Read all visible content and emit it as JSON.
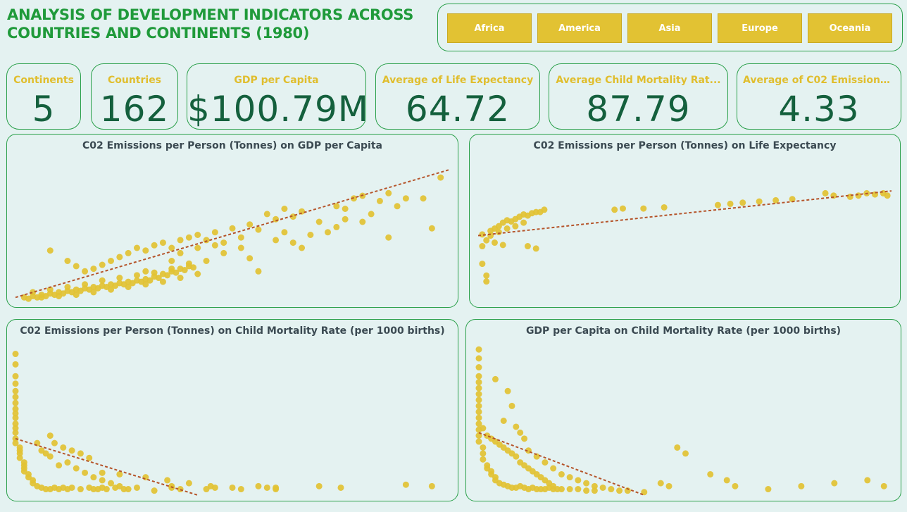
{
  "header": {
    "title_line1": "ANALYSIS OF DEVELOPMENT INDICATORS ACROSS",
    "title_line2": "COUNTRIES AND CONTINENTS (1980)"
  },
  "slicer": {
    "items": [
      "Africa",
      "America",
      "Asia",
      "Europe",
      "Oceania"
    ]
  },
  "kpis": [
    {
      "label": "Continents",
      "value": "5"
    },
    {
      "label": "Countries",
      "value": "162"
    },
    {
      "label": "GDP per Capita",
      "value": "$100.79M"
    },
    {
      "label": "Average of Life Expectancy",
      "value": "64.72"
    },
    {
      "label": "Average Child Mortality Rat...",
      "value": "87.79"
    },
    {
      "label": "Average of C02 Emissions...",
      "value": "4.33"
    }
  ],
  "colors": {
    "title": "#1f9a3a",
    "accent": "#e0be2e",
    "kpi_value": "#14603d",
    "dot": "#e2c233",
    "trend": "#b5542a",
    "border": "#2aa04a",
    "background": "#e4f2f1"
  },
  "chart_data": [
    {
      "type": "scatter",
      "title": "C02 Emissions per Person (Tonnes) on GDP per Capita",
      "xlim": [
        0,
        100
      ],
      "ylim": [
        0,
        100
      ],
      "grid": false,
      "points": [
        [
          2,
          2
        ],
        [
          3,
          1
        ],
        [
          4,
          3
        ],
        [
          5,
          2
        ],
        [
          6,
          4
        ],
        [
          7,
          3
        ],
        [
          8,
          5
        ],
        [
          9,
          4
        ],
        [
          10,
          6
        ],
        [
          11,
          5
        ],
        [
          12,
          7
        ],
        [
          13,
          6
        ],
        [
          14,
          8
        ],
        [
          15,
          7
        ],
        [
          16,
          9
        ],
        [
          17,
          8
        ],
        [
          18,
          10
        ],
        [
          19,
          9
        ],
        [
          20,
          11
        ],
        [
          21,
          10
        ],
        [
          22,
          12
        ],
        [
          23,
          11
        ],
        [
          24,
          13
        ],
        [
          25,
          12
        ],
        [
          26,
          14
        ],
        [
          27,
          13
        ],
        [
          28,
          15
        ],
        [
          29,
          14
        ],
        [
          30,
          16
        ],
        [
          31,
          15
        ],
        [
          32,
          18
        ],
        [
          33,
          17
        ],
        [
          34,
          20
        ],
        [
          35,
          19
        ],
        [
          36,
          22
        ],
        [
          37,
          21
        ],
        [
          38,
          24
        ],
        [
          39,
          23
        ],
        [
          40,
          26
        ],
        [
          41,
          25
        ],
        [
          4,
          6
        ],
        [
          6,
          2
        ],
        [
          8,
          8
        ],
        [
          10,
          3
        ],
        [
          12,
          10
        ],
        [
          14,
          4
        ],
        [
          16,
          12
        ],
        [
          18,
          6
        ],
        [
          20,
          15
        ],
        [
          22,
          8
        ],
        [
          24,
          17
        ],
        [
          26,
          10
        ],
        [
          28,
          19
        ],
        [
          30,
          12
        ],
        [
          32,
          21
        ],
        [
          34,
          14
        ],
        [
          36,
          24
        ],
        [
          38,
          17
        ],
        [
          40,
          28
        ],
        [
          42,
          20
        ],
        [
          8,
          38
        ],
        [
          12,
          30
        ],
        [
          14,
          26
        ],
        [
          16,
          22
        ],
        [
          18,
          24
        ],
        [
          20,
          27
        ],
        [
          22,
          30
        ],
        [
          24,
          33
        ],
        [
          26,
          36
        ],
        [
          28,
          40
        ],
        [
          30,
          38
        ],
        [
          32,
          42
        ],
        [
          34,
          44
        ],
        [
          36,
          40
        ],
        [
          38,
          46
        ],
        [
          40,
          48
        ],
        [
          42,
          50
        ],
        [
          44,
          46
        ],
        [
          46,
          52
        ],
        [
          48,
          44
        ],
        [
          50,
          55
        ],
        [
          52,
          48
        ],
        [
          54,
          58
        ],
        [
          56,
          54
        ],
        [
          58,
          66
        ],
        [
          60,
          62
        ],
        [
          62,
          70
        ],
        [
          64,
          64
        ],
        [
          66,
          68
        ],
        [
          70,
          60
        ],
        [
          74,
          72
        ],
        [
          76,
          70
        ],
        [
          78,
          78
        ],
        [
          80,
          80
        ],
        [
          82,
          66
        ],
        [
          84,
          76
        ],
        [
          86,
          82
        ],
        [
          88,
          72
        ],
        [
          90,
          78
        ],
        [
          98,
          94
        ],
        [
          94,
          78
        ],
        [
          96,
          55
        ],
        [
          66,
          40
        ],
        [
          56,
          22
        ],
        [
          44,
          30
        ],
        [
          36,
          30
        ],
        [
          30,
          22
        ],
        [
          48,
          36
        ],
        [
          52,
          40
        ],
        [
          54,
          32
        ],
        [
          38,
          36
        ],
        [
          42,
          40
        ],
        [
          46,
          42
        ],
        [
          60,
          46
        ],
        [
          62,
          52
        ],
        [
          64,
          44
        ],
        [
          68,
          50
        ],
        [
          72,
          52
        ],
        [
          74,
          56
        ],
        [
          76,
          62
        ],
        [
          80,
          60
        ],
        [
          86,
          48
        ]
      ],
      "trend": [
        [
          0,
          2
        ],
        [
          100,
          100
        ]
      ]
    },
    {
      "type": "scatter",
      "title": "C02 Emissions per Person (Tonnes) on Life Expectancy",
      "xlim": [
        0,
        100
      ],
      "ylim": [
        0,
        100
      ],
      "grid": false,
      "points": [
        [
          1,
          45
        ],
        [
          2,
          40
        ],
        [
          3,
          48
        ],
        [
          4,
          50
        ],
        [
          5,
          52
        ],
        [
          6,
          55
        ],
        [
          7,
          57
        ],
        [
          8,
          56
        ],
        [
          9,
          58
        ],
        [
          10,
          60
        ],
        [
          11,
          62
        ],
        [
          12,
          61
        ],
        [
          13,
          63
        ],
        [
          14,
          64
        ],
        [
          15,
          64
        ],
        [
          16,
          66
        ],
        [
          1,
          35
        ],
        [
          1,
          20
        ],
        [
          2,
          10
        ],
        [
          2,
          5
        ],
        [
          12,
          35
        ],
        [
          14,
          33
        ],
        [
          4,
          38
        ],
        [
          6,
          36
        ],
        [
          3,
          44
        ],
        [
          5,
          47
        ],
        [
          7,
          50
        ],
        [
          9,
          52
        ],
        [
          11,
          55
        ],
        [
          33,
          66
        ],
        [
          35,
          67
        ],
        [
          40,
          67
        ],
        [
          45,
          68
        ],
        [
          58,
          70
        ],
        [
          61,
          71
        ],
        [
          64,
          72
        ],
        [
          68,
          73
        ],
        [
          72,
          74
        ],
        [
          76,
          75
        ],
        [
          84,
          80
        ],
        [
          86,
          78
        ],
        [
          90,
          77
        ],
        [
          92,
          78
        ],
        [
          94,
          80
        ],
        [
          96,
          79
        ],
        [
          98,
          80
        ],
        [
          99,
          78
        ]
      ],
      "trend": [
        [
          0,
          44
        ],
        [
          100,
          82
        ]
      ]
    },
    {
      "type": "scatter",
      "title": "C02 Emissions per Person (Tonnes) on Child Mortality Rate (per 1000 births)",
      "xlim": [
        0,
        100
      ],
      "ylim": [
        0,
        100
      ],
      "grid": false,
      "points": [
        [
          0,
          95
        ],
        [
          0,
          88
        ],
        [
          0,
          80
        ],
        [
          0,
          75
        ],
        [
          0,
          70
        ],
        [
          0,
          66
        ],
        [
          0,
          62
        ],
        [
          0,
          58
        ],
        [
          0,
          55
        ],
        [
          0,
          52
        ],
        [
          0,
          48
        ],
        [
          0,
          45
        ],
        [
          0,
          42
        ],
        [
          0,
          38
        ],
        [
          0,
          35
        ],
        [
          1,
          32
        ],
        [
          1,
          30
        ],
        [
          1,
          28
        ],
        [
          1,
          25
        ],
        [
          2,
          22
        ],
        [
          2,
          20
        ],
        [
          2,
          18
        ],
        [
          2,
          16
        ],
        [
          3,
          14
        ],
        [
          3,
          12
        ],
        [
          4,
          10
        ],
        [
          4,
          8
        ],
        [
          5,
          6
        ],
        [
          6,
          5
        ],
        [
          7,
          4
        ],
        [
          8,
          4
        ],
        [
          9,
          5
        ],
        [
          10,
          4
        ],
        [
          11,
          5
        ],
        [
          12,
          4
        ],
        [
          13,
          5
        ],
        [
          15,
          4
        ],
        [
          17,
          5
        ],
        [
          19,
          4
        ],
        [
          21,
          4
        ],
        [
          23,
          5
        ],
        [
          25,
          4
        ],
        [
          5,
          35
        ],
        [
          6,
          30
        ],
        [
          7,
          28
        ],
        [
          8,
          26
        ],
        [
          10,
          20
        ],
        [
          12,
          22
        ],
        [
          14,
          18
        ],
        [
          16,
          15
        ],
        [
          18,
          12
        ],
        [
          20,
          10
        ],
        [
          22,
          8
        ],
        [
          24,
          6
        ],
        [
          8,
          40
        ],
        [
          9,
          35
        ],
        [
          11,
          32
        ],
        [
          13,
          30
        ],
        [
          15,
          28
        ],
        [
          17,
          25
        ],
        [
          20,
          15
        ],
        [
          24,
          14
        ],
        [
          30,
          12
        ],
        [
          35,
          10
        ],
        [
          40,
          8
        ],
        [
          45,
          6
        ],
        [
          50,
          5
        ],
        [
          52,
          4
        ],
        [
          56,
          6
        ],
        [
          60,
          4
        ],
        [
          18,
          4
        ],
        [
          20,
          5
        ],
        [
          26,
          4
        ],
        [
          28,
          5
        ],
        [
          36,
          5
        ],
        [
          38,
          4
        ],
        [
          44,
          4
        ],
        [
          46,
          5
        ],
        [
          58,
          5
        ],
        [
          60,
          5
        ],
        [
          70,
          6
        ],
        [
          75,
          5
        ],
        [
          90,
          7
        ],
        [
          96,
          6
        ],
        [
          32,
          3
        ],
        [
          36,
          6
        ]
      ],
      "trend": [
        [
          0,
          38
        ],
        [
          42,
          0
        ]
      ]
    },
    {
      "type": "scatter",
      "title": "GDP per Capita on Child Mortality Rate (per 1000 births)",
      "xlim": [
        0,
        100
      ],
      "ylim": [
        0,
        100
      ],
      "grid": false,
      "points": [
        [
          0,
          98
        ],
        [
          0,
          92
        ],
        [
          0,
          86
        ],
        [
          0,
          80
        ],
        [
          0,
          76
        ],
        [
          0,
          72
        ],
        [
          0,
          68
        ],
        [
          0,
          64
        ],
        [
          0,
          60
        ],
        [
          0,
          56
        ],
        [
          0,
          52
        ],
        [
          0,
          48
        ],
        [
          0,
          44
        ],
        [
          0,
          40
        ],
        [
          0,
          36
        ],
        [
          1,
          32
        ],
        [
          1,
          28
        ],
        [
          1,
          24
        ],
        [
          2,
          20
        ],
        [
          2,
          18
        ],
        [
          3,
          16
        ],
        [
          3,
          14
        ],
        [
          4,
          12
        ],
        [
          4,
          10
        ],
        [
          5,
          8
        ],
        [
          6,
          7
        ],
        [
          7,
          6
        ],
        [
          8,
          5
        ],
        [
          9,
          5
        ],
        [
          10,
          6
        ],
        [
          11,
          5
        ],
        [
          12,
          4
        ],
        [
          13,
          5
        ],
        [
          14,
          4
        ],
        [
          15,
          4
        ],
        [
          16,
          4
        ],
        [
          17,
          5
        ],
        [
          18,
          4
        ],
        [
          19,
          4
        ],
        [
          20,
          4
        ],
        [
          22,
          4
        ],
        [
          24,
          4
        ],
        [
          26,
          3
        ],
        [
          28,
          3
        ],
        [
          1,
          45
        ],
        [
          2,
          40
        ],
        [
          3,
          38
        ],
        [
          4,
          36
        ],
        [
          5,
          34
        ],
        [
          6,
          32
        ],
        [
          7,
          30
        ],
        [
          8,
          28
        ],
        [
          9,
          26
        ],
        [
          10,
          22
        ],
        [
          11,
          20
        ],
        [
          12,
          18
        ],
        [
          13,
          16
        ],
        [
          14,
          14
        ],
        [
          15,
          12
        ],
        [
          16,
          10
        ],
        [
          17,
          8
        ],
        [
          18,
          6
        ],
        [
          4,
          78
        ],
        [
          7,
          70
        ],
        [
          8,
          60
        ],
        [
          6,
          50
        ],
        [
          9,
          46
        ],
        [
          10,
          42
        ],
        [
          11,
          38
        ],
        [
          12,
          30
        ],
        [
          14,
          26
        ],
        [
          16,
          22
        ],
        [
          18,
          18
        ],
        [
          20,
          14
        ],
        [
          22,
          12
        ],
        [
          24,
          10
        ],
        [
          26,
          8
        ],
        [
          28,
          6
        ],
        [
          30,
          5
        ],
        [
          32,
          4
        ],
        [
          34,
          3
        ],
        [
          36,
          3
        ],
        [
          40,
          2
        ],
        [
          44,
          8
        ],
        [
          46,
          6
        ],
        [
          48,
          32
        ],
        [
          50,
          28
        ],
        [
          56,
          14
        ],
        [
          60,
          10
        ],
        [
          62,
          6
        ],
        [
          70,
          4
        ],
        [
          78,
          6
        ],
        [
          86,
          8
        ],
        [
          94,
          10
        ],
        [
          98,
          6
        ]
      ],
      "trend": [
        [
          0,
          42
        ],
        [
          40,
          0
        ]
      ]
    }
  ]
}
